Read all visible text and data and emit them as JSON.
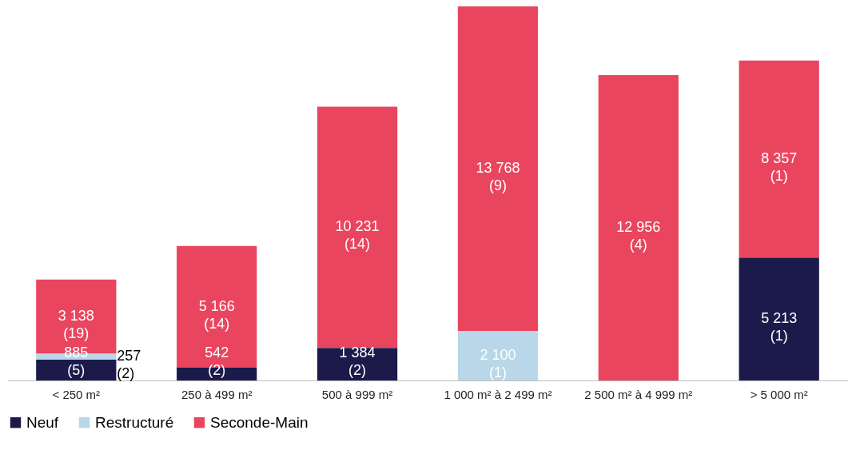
{
  "chart_data": {
    "type": "bar",
    "stacked": true,
    "legend": "bottom",
    "categories": [
      "< 250 m²",
      "250 à 499 m²",
      "500 à 999 m²",
      "1 000 m² à 2 499 m²",
      "2 500 m² à 4 999 m²",
      "> 5 000 m²"
    ],
    "series": [
      {
        "name": "Neuf",
        "color": "#1b1a4b",
        "values": [
          885,
          542,
          1384,
          null,
          null,
          5213
        ],
        "value_labels": [
          "885\n(5)",
          "542\n(2)",
          "1 384\n(2)",
          null,
          null,
          "5 213\n(1)"
        ]
      },
      {
        "name": "Restructuré",
        "color": "#b9d7e8",
        "values": [
          257,
          null,
          null,
          2100,
          null,
          null
        ],
        "value_labels": [
          "257\n(2)",
          null,
          null,
          "2 100\n(1)",
          null,
          null
        ]
      },
      {
        "name": "Seconde-Main",
        "color": "#e9455f",
        "values": [
          3138,
          5166,
          10231,
          13768,
          12956,
          8357
        ],
        "value_labels": [
          "3 138\n(19)",
          "5 166\n(14)",
          "10 231\n(14)",
          "13 768\n(9)",
          "12 956\n(4)",
          "8 357\n(1)"
        ]
      }
    ]
  }
}
